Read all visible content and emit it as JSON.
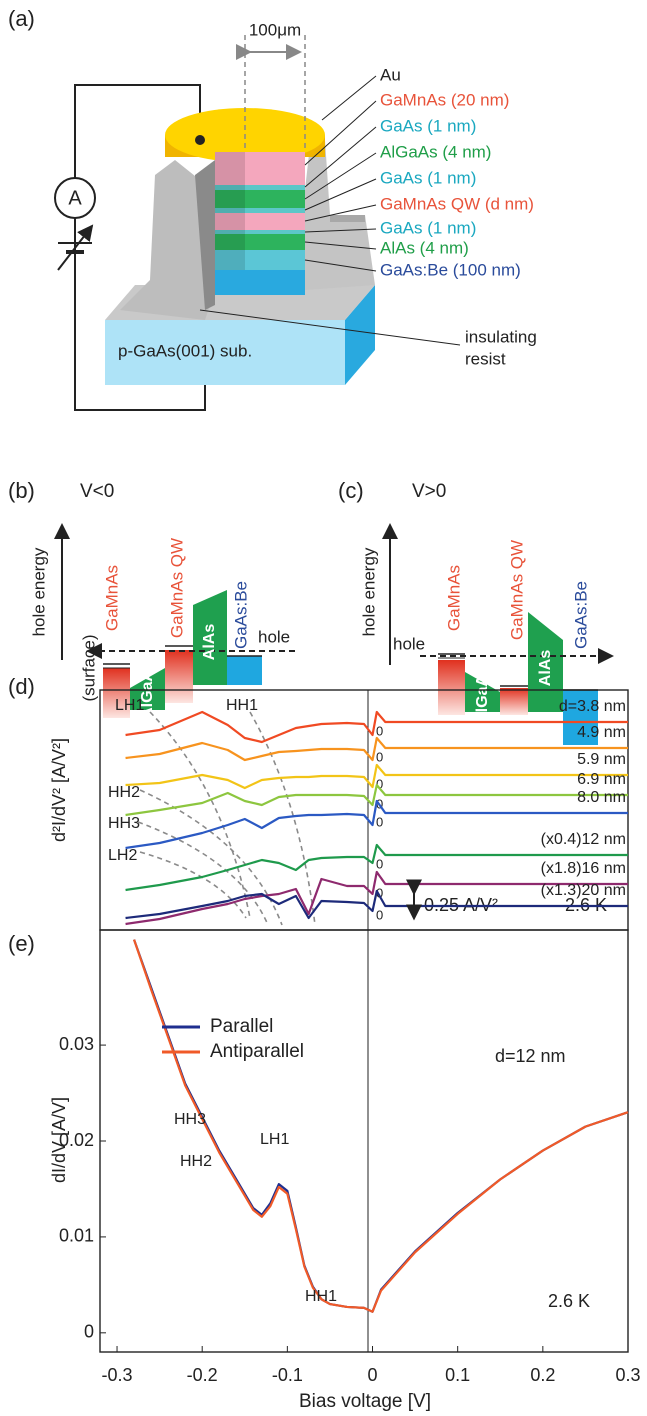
{
  "panel_labels": [
    "(a)",
    "(b)",
    "(c)",
    "(d)",
    "(e)"
  ],
  "device": {
    "width_label": "100μm",
    "ammeter": "A",
    "layers": [
      {
        "label": "Au",
        "color": "#222222"
      },
      {
        "label": "GaMnAs (20 nm)",
        "color": "#e8533a"
      },
      {
        "label": "GaAs (1 nm)",
        "color": "#1aa8c0"
      },
      {
        "label": "AlGaAs (4 nm)",
        "color": "#1f9e48"
      },
      {
        "label": "GaAs (1 nm)",
        "color": "#1aa8c0"
      },
      {
        "label": "GaMnAs QW (d nm)",
        "color": "#e8533a"
      },
      {
        "label": "GaAs (1 nm)",
        "color": "#1aa8c0"
      },
      {
        "label": "AlAs (4 nm)",
        "color": "#1f9e48"
      },
      {
        "label": "GaAs:Be (100 nm)",
        "color": "#2a4b9b"
      }
    ],
    "resist_label": [
      "insulating",
      "resist"
    ],
    "substrate": "p-GaAs(001) sub."
  },
  "band_b": {
    "condition": "V<0",
    "axis": "hole energy",
    "regions": [
      "GaMnAs",
      "GaMnAs QW",
      "GaAs:Be"
    ],
    "barriers": [
      "AlGaAs",
      "AlAs"
    ],
    "carrier": "hole",
    "surface": "(surface)"
  },
  "band_c": {
    "condition": "V>0",
    "axis": "hole energy",
    "regions": [
      "GaMnAs",
      "GaMnAs QW",
      "GaAs:Be"
    ],
    "barriers": [
      "AlGaAs",
      "AlAs"
    ],
    "carrier": "hole"
  },
  "chart_data": [
    {
      "type": "line",
      "y_label": "d²I/dV² [A/V²]",
      "x": [
        -0.29,
        -0.25,
        -0.2,
        -0.17,
        -0.15,
        -0.13,
        -0.11,
        -0.09,
        -0.075,
        -0.06,
        -0.03,
        -0.01,
        0,
        0.005,
        0.015,
        0.05,
        0.1,
        0.2,
        0.3
      ],
      "xlim": [
        -0.32,
        0.3
      ],
      "series": [
        {
          "name": "d=3.8 nm",
          "color": "#f04a23",
          "values": [
            -0.13,
            -0.08,
            0.1,
            -0.03,
            -0.16,
            -0.2,
            -0.13,
            -0.06,
            -0.04,
            -0.02,
            -0.01,
            -0.02,
            -0.13,
            0.1,
            0,
            0,
            0,
            0,
            0
          ]
        },
        {
          "name": "4.9 nm",
          "color": "#f7931e",
          "values": [
            -0.1,
            -0.06,
            0.05,
            -0.02,
            -0.12,
            -0.08,
            -0.04,
            -0.03,
            -0.02,
            -0.01,
            -0.01,
            -0.02,
            -0.12,
            0.1,
            0,
            0,
            0,
            0,
            0
          ]
        },
        {
          "name": "5.9 nm",
          "color": "#f2c417",
          "values": [
            -0.1,
            -0.08,
            0,
            -0.05,
            -0.13,
            -0.05,
            -0.03,
            -0.02,
            -0.02,
            -0.01,
            -0.01,
            -0.02,
            -0.12,
            0.1,
            0,
            0,
            0,
            0,
            0
          ]
        },
        {
          "name": "6.9 nm",
          "color": "#8dc63f",
          "values": [
            -0.2,
            -0.15,
            -0.08,
            0.02,
            -0.06,
            -0.1,
            -0.02,
            0,
            0,
            0,
            0,
            -0.01,
            -0.1,
            0.1,
            0,
            0,
            0,
            0,
            0
          ]
        },
        {
          "name": "8.0 nm",
          "color": "#2b59c3",
          "values": [
            -0.35,
            -0.3,
            -0.2,
            -0.12,
            -0.06,
            -0.15,
            -0.05,
            -0.03,
            -0.02,
            -0.02,
            -0.01,
            -0.02,
            -0.12,
            0.12,
            0,
            0,
            0,
            0,
            0
          ]
        },
        {
          "name": "(x0.4)12 nm",
          "color": "#1f9a4c",
          "values": [
            -0.35,
            -0.3,
            -0.22,
            -0.15,
            -0.1,
            -0.05,
            -0.08,
            -0.15,
            -0.05,
            -0.03,
            -0.02,
            -0.02,
            -0.08,
            0.1,
            0,
            0,
            0,
            0,
            0
          ]
        },
        {
          "name": "(x1.8)16 nm",
          "color": "#8e2a6e",
          "values": [
            -0.4,
            -0.35,
            -0.25,
            -0.2,
            -0.15,
            -0.12,
            -0.1,
            -0.05,
            -0.3,
            0.05,
            -0.02,
            -0.02,
            -0.1,
            0.12,
            0,
            0,
            0,
            0,
            0
          ]
        },
        {
          "name": "(x1.3)20 nm",
          "color": "#1d2a7a",
          "values": [
            -0.12,
            -0.08,
            0,
            0.05,
            0.1,
            0.12,
            0.02,
            0.1,
            -0.12,
            0.05,
            0.04,
            0.03,
            -0.05,
            0.15,
            0,
            0,
            0,
            0,
            0
          ]
        }
      ],
      "zero_label": "0",
      "scale_bar": {
        "value": 0.25,
        "label": "0.25 A/V²"
      },
      "temperature": "2.6 K",
      "annotations": [
        "LH1",
        "HH1",
        "HH2",
        "HH3",
        "LH2"
      ]
    },
    {
      "type": "line",
      "x_label": "Bias voltage [V]",
      "y_label": "dI/dV [A/V]",
      "x": [
        -0.28,
        -0.26,
        -0.24,
        -0.22,
        -0.2,
        -0.18,
        -0.16,
        -0.14,
        -0.13,
        -0.12,
        -0.11,
        -0.1,
        -0.09,
        -0.08,
        -0.07,
        -0.06,
        -0.05,
        -0.03,
        -0.01,
        0,
        0.01,
        0.03,
        0.05,
        0.1,
        0.15,
        0.2,
        0.25,
        0.3
      ],
      "series": [
        {
          "name": "Parallel",
          "color": "#1f2f8f",
          "values": [
            0.041,
            0.036,
            0.031,
            0.026,
            0.0225,
            0.019,
            0.016,
            0.013,
            0.0123,
            0.0135,
            0.0155,
            0.0148,
            0.011,
            0.007,
            0.0048,
            0.0035,
            0.003,
            0.0027,
            0.0026,
            0.0022,
            0.0045,
            0.0065,
            0.0085,
            0.0125,
            0.016,
            0.019,
            0.0215,
            0.023
          ]
        },
        {
          "name": "Antiparallel",
          "color": "#f05a28",
          "values": [
            0.041,
            0.0358,
            0.0308,
            0.0258,
            0.0223,
            0.0188,
            0.0158,
            0.0128,
            0.0121,
            0.0132,
            0.0152,
            0.0145,
            0.0108,
            0.0069,
            0.0047,
            0.0035,
            0.003,
            0.0027,
            0.0026,
            0.0022,
            0.0044,
            0.0064,
            0.0084,
            0.0124,
            0.016,
            0.019,
            0.0215,
            0.023
          ]
        }
      ],
      "xlim": [
        -0.32,
        0.3
      ],
      "ylim": [
        -0.002,
        0.042
      ],
      "xticks": [
        -0.3,
        -0.2,
        -0.1,
        0,
        0.1,
        0.2,
        0.3
      ],
      "yticks": [
        0,
        0.01,
        0.02,
        0.03
      ],
      "legend": "upper left",
      "thickness": "d=12 nm",
      "temperature": "2.6 K",
      "annotations": [
        "HH3",
        "HH2",
        "LH1",
        "HH1"
      ]
    }
  ]
}
